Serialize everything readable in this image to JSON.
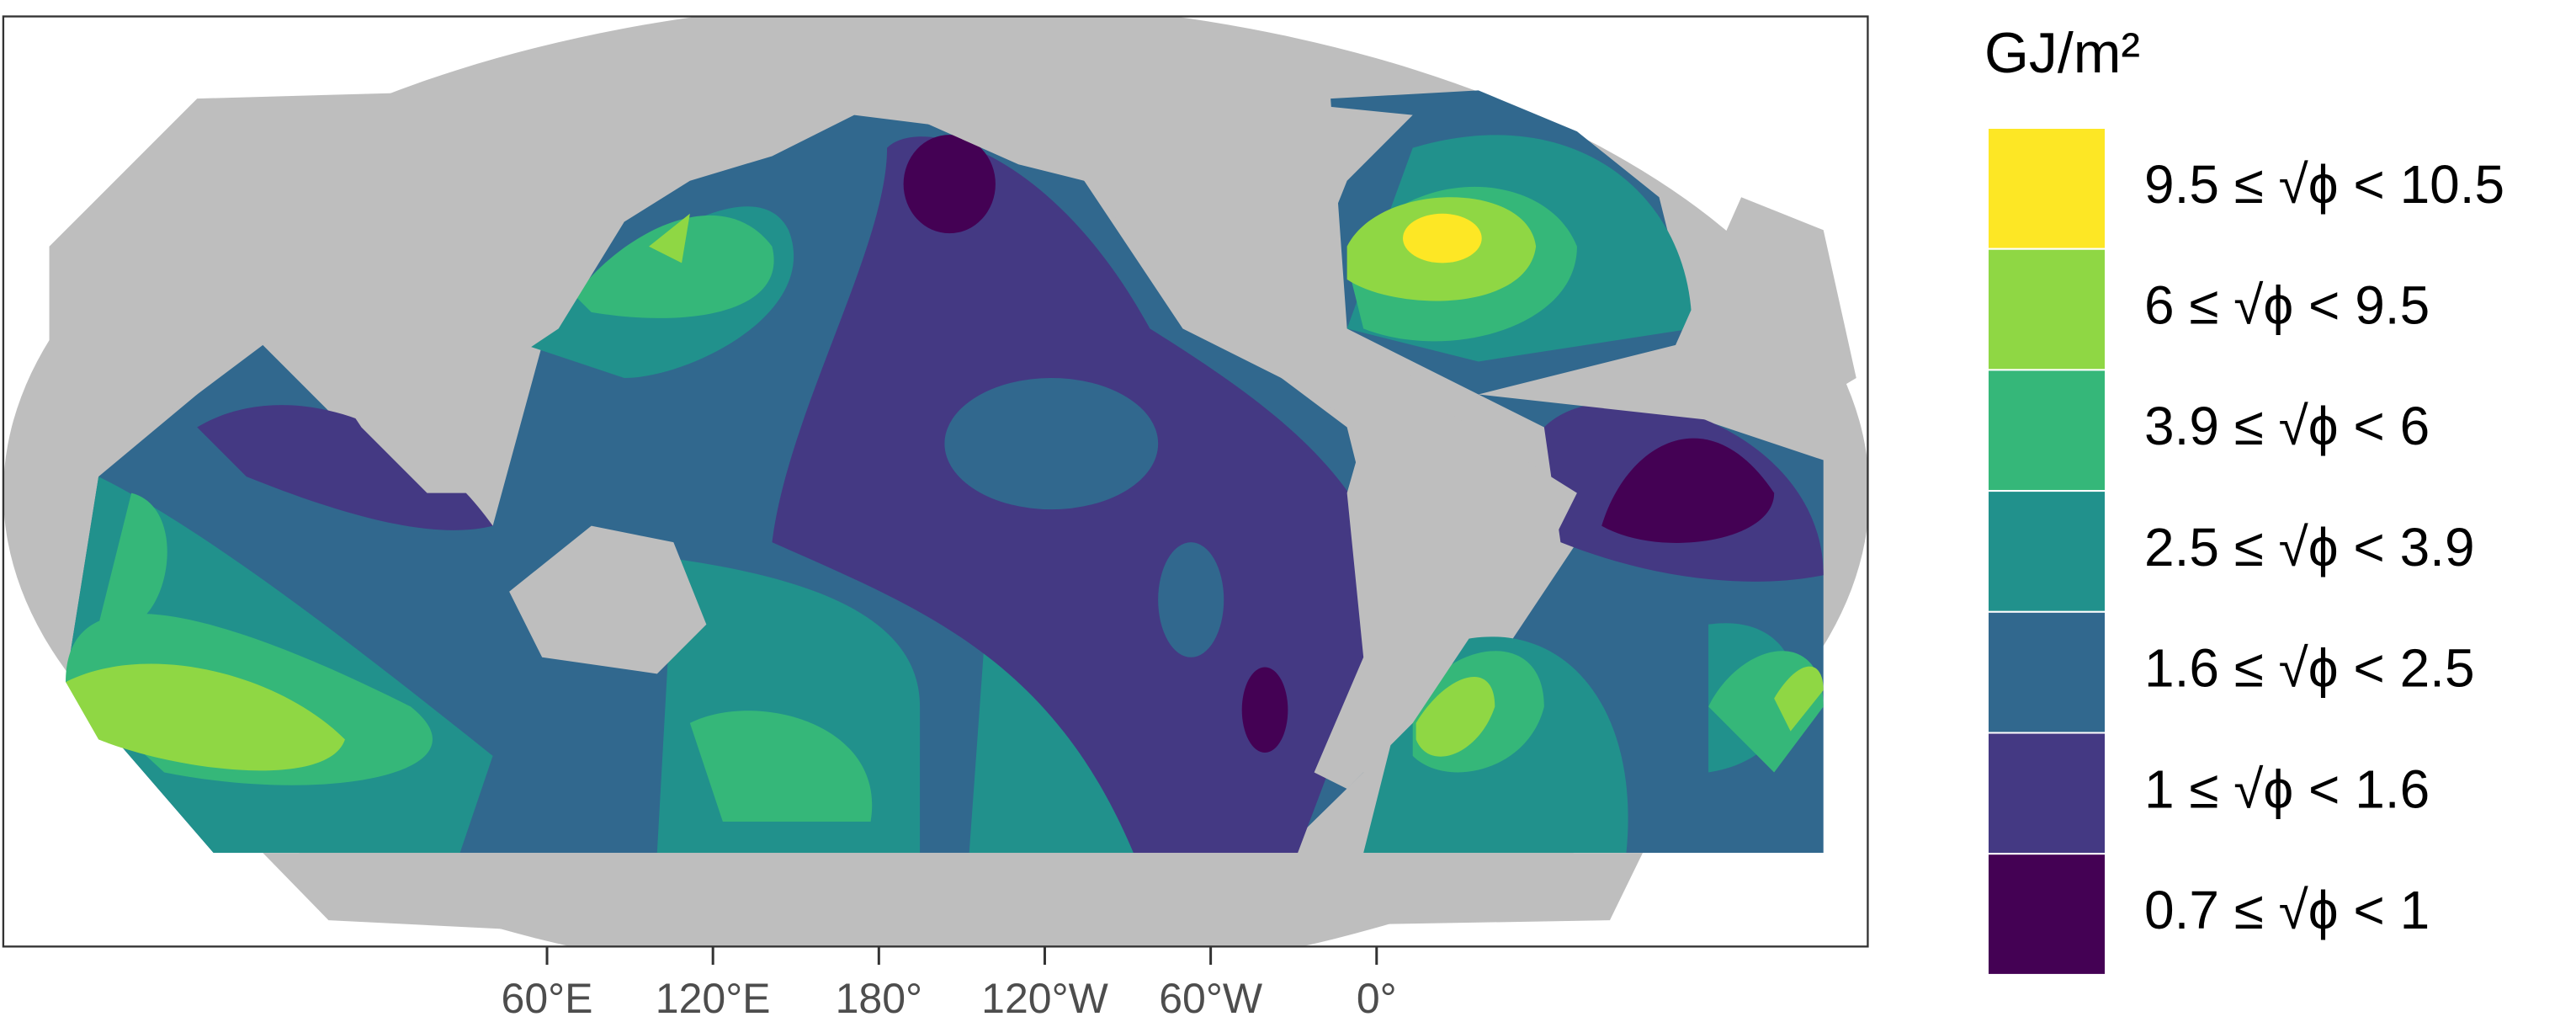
{
  "legend": {
    "title": "GJ/m²",
    "items": [
      {
        "label": "9.5 ≤ √ϕ < 10.5",
        "color": "#fde725"
      },
      {
        "label": "6 ≤ √ϕ < 9.5",
        "color": "#8fd744"
      },
      {
        "label": "3.9 ≤ √ϕ < 6",
        "color": "#35b779"
      },
      {
        "label": "2.5 ≤ √ϕ < 3.9",
        "color": "#21918c"
      },
      {
        "label": "1.6 ≤ √ϕ < 2.5",
        "color": "#31688e"
      },
      {
        "label": "1 ≤ √ϕ < 1.6",
        "color": "#443983"
      },
      {
        "label": "0.7 ≤ √ϕ < 1",
        "color": "#440154"
      }
    ]
  },
  "axis": {
    "ticks": [
      "60°E",
      "120°E",
      "180°",
      "120°W",
      "60°W",
      "0°"
    ]
  }
}
